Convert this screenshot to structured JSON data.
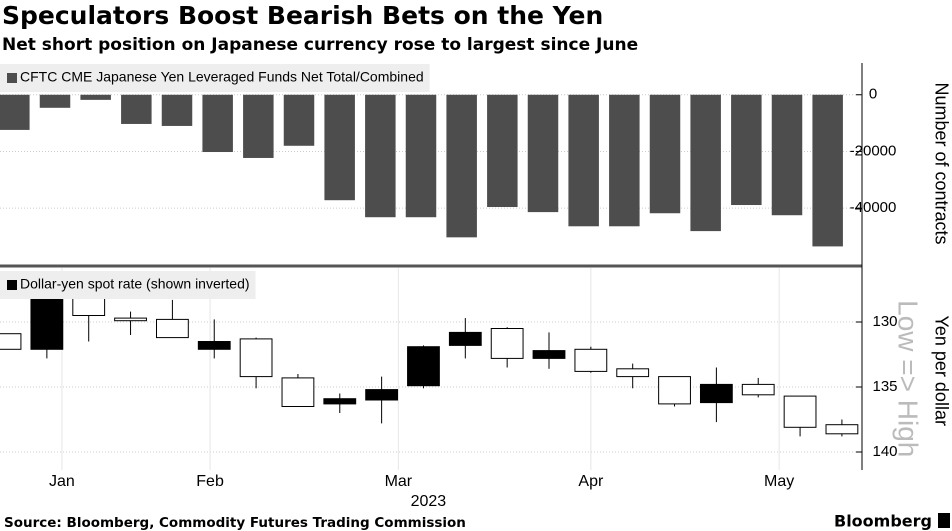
{
  "title": "Speculators Boost Bearish Bets on the Yen",
  "subtitle": "Net short position on Japanese currency rose to largest since June",
  "source": "Source: Bloomberg, Commodity Futures Trading Commission",
  "brand": "Bloomberg",
  "chart_data": [
    {
      "type": "bar",
      "y_label": "Number of contracts",
      "categories": [
        null,
        null,
        null,
        null,
        null,
        null,
        null,
        null,
        null,
        null,
        null,
        null,
        null,
        null,
        null,
        null,
        null,
        null,
        null,
        null,
        null
      ],
      "series": [
        {
          "name": "CFTC CME Japanese Yen Leveraged Funds Net Total/Combined",
          "color": "#4d4d4d",
          "values": [
            -12400,
            -4600,
            -1800,
            -10300,
            -11000,
            -20200,
            -22300,
            -18000,
            -37200,
            -43200,
            -43200,
            -50300,
            -39600,
            -41400,
            -46400,
            -46400,
            -41800,
            -48100,
            -38900,
            -42500,
            -53500
          ]
        }
      ],
      "ylim": [
        -59000,
        10500
      ],
      "yticks": [
        0,
        -20000,
        -40000
      ],
      "grid": true,
      "legend": "top-left"
    },
    {
      "type": "candlestick",
      "y_label": "Yen per dollar",
      "annotation": "Low => High",
      "x_label": "2023",
      "x": [
        0,
        1,
        2,
        3,
        4,
        5,
        6,
        7,
        8,
        9,
        10,
        11,
        12,
        13,
        14,
        15,
        16,
        17,
        18,
        19,
        20
      ],
      "series": [
        {
          "name": "Dollar-yen spot rate (shown inverted)",
          "up_color": "#ffffff",
          "down_color": "#000000",
          "open": [
            130.9,
            132.1,
            127.8,
            129.7,
            129.8,
            132.1,
            131.3,
            134.3,
            136.3,
            136.0,
            134.9,
            131.8,
            130.5,
            132.8,
            132.1,
            133.6,
            134.2,
            136.2,
            134.8,
            135.7,
            137.9
          ],
          "high": [
            132.1,
            132.8,
            131.5,
            131.0,
            131.2,
            132.8,
            135.1,
            136.5,
            137.0,
            137.8,
            135.1,
            132.8,
            133.5,
            133.6,
            133.9,
            135.1,
            136.5,
            137.7,
            135.8,
            138.8,
            138.8
          ],
          "low": [
            130.9,
            127.6,
            127.3,
            129.2,
            128.3,
            129.8,
            131.2,
            134.0,
            135.5,
            134.2,
            131.8,
            129.7,
            130.4,
            130.8,
            131.9,
            133.2,
            134.2,
            133.5,
            134.3,
            135.7,
            137.5
          ],
          "close": [
            132.1,
            128.1,
            129.5,
            129.9,
            131.2,
            131.5,
            134.2,
            136.5,
            135.9,
            135.2,
            131.9,
            130.8,
            132.8,
            132.2,
            133.8,
            134.2,
            136.3,
            134.8,
            135.6,
            138.1,
            138.6
          ]
        }
      ],
      "xlim": [
        -0.12,
        20.48
      ],
      "xticks": [
        {
          "value": 1.36,
          "label": "Jan"
        },
        {
          "value": 4.9,
          "label": "Feb"
        },
        {
          "value": 9.4,
          "label": "Mar"
        },
        {
          "value": 14.0,
          "label": "Apr"
        },
        {
          "value": 18.5,
          "label": "May"
        }
      ],
      "ylim": [
        126,
        141.5
      ],
      "inverted": true,
      "yticks": [
        130,
        135,
        140
      ],
      "grid": true,
      "legend": "top-left"
    }
  ]
}
